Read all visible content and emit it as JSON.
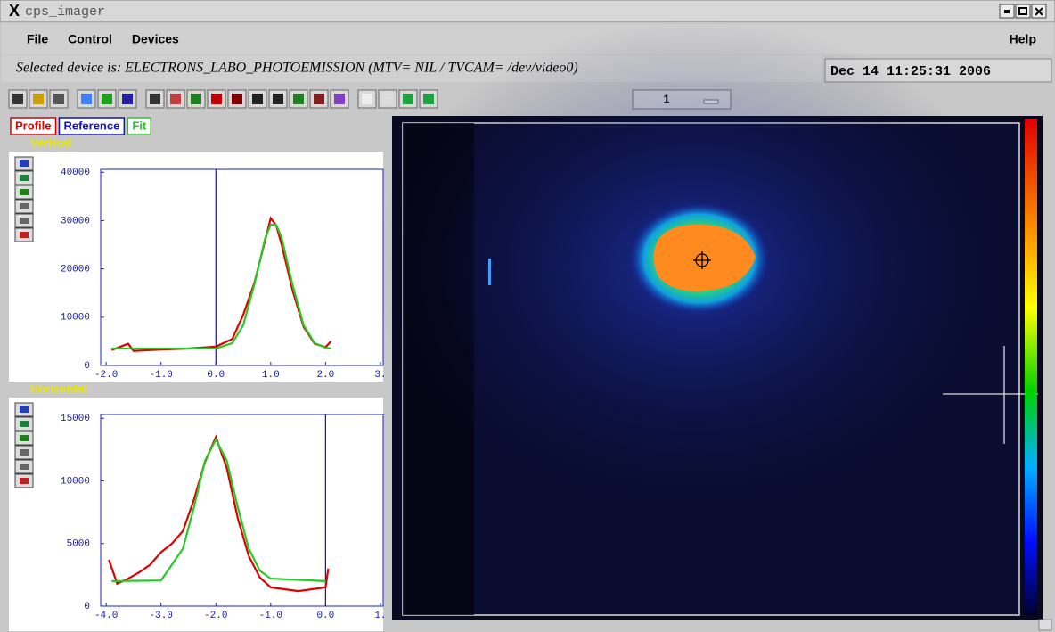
{
  "window": {
    "title": "cps_imager"
  },
  "menu": {
    "items": [
      "File",
      "Control",
      "Devices"
    ],
    "help": "Help"
  },
  "status": {
    "text": "Selected device is: ELECTRONS_LABO_PHOTOEMISSION (MTV= NIL / TVCAM= /dev/video0)",
    "datetime": "Dec 14 11:25:31 2006"
  },
  "toolbar": {
    "spinner": "1"
  },
  "legend": [
    {
      "label": "Profile",
      "color": "#e00000"
    },
    {
      "label": "Reference",
      "color": "#1010d0"
    },
    {
      "label": "Fit",
      "color": "#22cc22"
    }
  ],
  "chart_data": [
    {
      "type": "line",
      "title": "Vertical",
      "xlim": [
        -2.1,
        3.05
      ],
      "ylim": [
        0,
        40600
      ],
      "xticks": [
        {
          "value": -2,
          "label": "-2.0"
        },
        {
          "value": -1,
          "label": "-1.0"
        },
        {
          "value": 0,
          "label": "0.0"
        },
        {
          "value": 1,
          "label": "1.0"
        },
        {
          "value": 2,
          "label": "2.0"
        },
        {
          "value": 3,
          "label": "3."
        }
      ],
      "yticks": [
        0,
        10000,
        20000,
        30000,
        40000
      ],
      "cursor": 0,
      "series": [
        {
          "color": "#e00000",
          "x": [
            -1.9,
            -1.6,
            -1.5,
            -1.0,
            -0.5,
            0,
            0.3,
            0.5,
            0.7,
            0.9,
            1.0,
            1.1,
            1.2,
            1.4,
            1.6,
            1.8,
            2.0,
            2.1
          ],
          "values": [
            3200,
            4500,
            3000,
            3300,
            3500,
            3900,
            5500,
            10500,
            17000,
            26000,
            30500,
            29000,
            25000,
            15500,
            8000,
            4500,
            3800,
            5000
          ]
        },
        {
          "color": "#22cc22",
          "x": [
            -1.9,
            -1.0,
            0,
            0.3,
            0.5,
            0.7,
            0.9,
            1.0,
            1.1,
            1.2,
            1.4,
            1.6,
            1.8,
            2.0,
            2.1
          ],
          "values": [
            3500,
            3500,
            3510,
            4640,
            8340,
            16660,
            26440,
            29140,
            29140,
            26440,
            16660,
            8340,
            4640,
            3670,
            3550
          ]
        }
      ]
    },
    {
      "type": "line",
      "title": "Horizontal",
      "xlim": [
        -4.1,
        1.05
      ],
      "ylim": [
        0,
        15300
      ],
      "xticks": [
        {
          "value": -4,
          "label": "-4.0"
        },
        {
          "value": -3,
          "label": "-3.0"
        },
        {
          "value": -2,
          "label": "-2.0"
        },
        {
          "value": -1,
          "label": "-1.0"
        },
        {
          "value": 0,
          "label": "0.0"
        },
        {
          "value": 1,
          "label": "1."
        }
      ],
      "yticks": [
        0,
        5000,
        10000,
        15000
      ],
      "cursor": 0,
      "series": [
        {
          "color": "#e00000",
          "x": [
            -3.95,
            -3.8,
            -3.6,
            -3.4,
            -3.2,
            -3.0,
            -2.8,
            -2.6,
            -2.4,
            -2.2,
            -2.0,
            -1.8,
            -1.6,
            -1.4,
            -1.2,
            -1.0,
            -0.5,
            0.0,
            0.05
          ],
          "values": [
            3700,
            1800,
            2200,
            2700,
            3300,
            4300,
            5000,
            6000,
            8500,
            11500,
            13500,
            11000,
            7000,
            4000,
            2300,
            1500,
            1200,
            1500,
            3000
          ]
        },
        {
          "color": "#22cc22",
          "x": [
            -3.9,
            -3.0,
            -2.6,
            -2.4,
            -2.2,
            -2.0,
            -1.8,
            -1.6,
            -1.4,
            -1.2,
            -1.0,
            0.0
          ],
          "values": [
            2000,
            2050,
            4600,
            7880,
            11600,
            13300,
            11600,
            7880,
            4600,
            2830,
            2200,
            2000
          ]
        }
      ]
    }
  ]
}
